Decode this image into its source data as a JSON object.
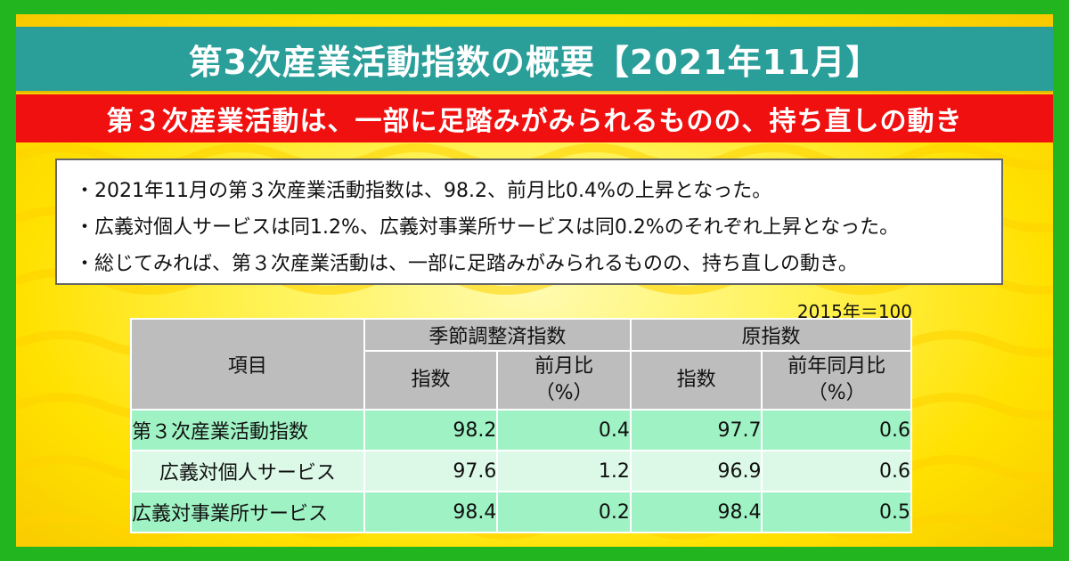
{
  "title": "第3次産業活動指数の概要【2021年11月】",
  "subtitle": "第３次産業活動は、一部に足踏みがみられるものの、持ち直しの動き",
  "summary": [
    "・2021年11月の第３次産業活動指数は、98.2、前月比0.4%の上昇となった。",
    "・広義対個人サービスは同1.2%、広義対事業所サービスは同0.2%のそれぞれ上昇となった。",
    "・総じてみれば、第３次産業活動は、一部に足踏みがみられるものの、持ち直しの動き。"
  ],
  "table": {
    "unit_note": "2015年＝100",
    "header": {
      "item": "項目",
      "group_sa": "季節調整済指数",
      "group_raw": "原指数",
      "sa_index": "指数",
      "sa_mom": [
        "前月比",
        "（%）"
      ],
      "raw_index": "指数",
      "raw_yoy": [
        "前年同月比",
        "（%）"
      ]
    },
    "rows": [
      {
        "name": "第３次産業活動指数",
        "sa_index": "98.2",
        "sa_mom": "0.4",
        "raw_index": "97.7",
        "raw_yoy": "0.6"
      },
      {
        "name": "広義対個人サービス",
        "sa_index": "97.6",
        "sa_mom": "1.2",
        "raw_index": "96.9",
        "raw_yoy": "0.6"
      },
      {
        "name": "広義対事業所サービス",
        "sa_index": "98.4",
        "sa_mom": "0.2",
        "raw_index": "98.4",
        "raw_yoy": "0.5"
      }
    ]
  },
  "colors": {
    "frame": "#22b51f",
    "title_bar": "#2a9e99",
    "subtitle_bar": "#f01010",
    "background": "#ffe100",
    "header_cell": "#bdbdbd",
    "row_dark": "#9ff2c4",
    "row_light": "#dcf9e8"
  }
}
